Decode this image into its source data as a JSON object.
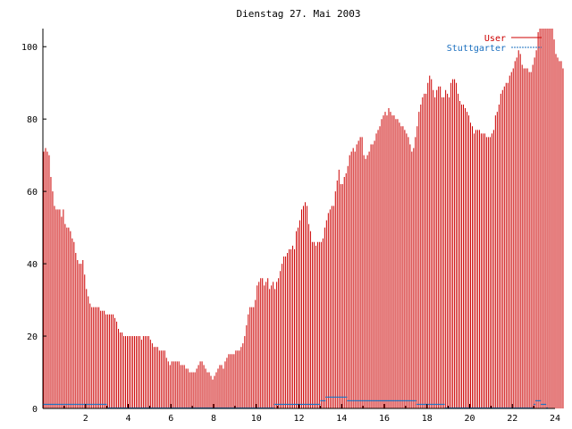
{
  "chart_data": {
    "type": "bar",
    "title": "Dienstag 27. Mai 2003",
    "xlabel": "",
    "ylabel": "",
    "xlim": [
      0,
      24
    ],
    "ylim": [
      0,
      105
    ],
    "x_ticks": [
      2,
      4,
      6,
      8,
      10,
      12,
      14,
      16,
      18,
      20,
      22,
      24
    ],
    "y_ticks": [
      0,
      20,
      40,
      60,
      80,
      100
    ],
    "grid": false,
    "legend_position": "top-right",
    "colors": {
      "User": "#cc0000",
      "Stuttgarter": "#1a6fbf"
    },
    "interval_minutes": 5,
    "series": [
      {
        "name": "User",
        "values": [
          71,
          72,
          71,
          70,
          64,
          60,
          56,
          55,
          55,
          55,
          53,
          55,
          51,
          50,
          50,
          49,
          47,
          46,
          43,
          41,
          40,
          40,
          41,
          37,
          33,
          31,
          29,
          28,
          28,
          28,
          28,
          28,
          27,
          27,
          27,
          26,
          26,
          26,
          26,
          26,
          25,
          24,
          22,
          21,
          21,
          20,
          20,
          20,
          20,
          20,
          20,
          20,
          20,
          20,
          20,
          19,
          20,
          20,
          20,
          20,
          19,
          18,
          17,
          17,
          17,
          16,
          16,
          16,
          16,
          14,
          13,
          12,
          13,
          13,
          13,
          13,
          13,
          12,
          12,
          12,
          11,
          11,
          10,
          10,
          10,
          10,
          11,
          12,
          13,
          13,
          12,
          11,
          10,
          10,
          9,
          8,
          9,
          10,
          11,
          12,
          12,
          11,
          13,
          14,
          15,
          15,
          15,
          15,
          16,
          16,
          16,
          17,
          18,
          20,
          23,
          26,
          28,
          28,
          28,
          30,
          34,
          35,
          36,
          36,
          34,
          35,
          36,
          33,
          34,
          35,
          33,
          35,
          36,
          38,
          40,
          42,
          42,
          43,
          44,
          44,
          45,
          44,
          49,
          50,
          52,
          55,
          56,
          57,
          56,
          51,
          49,
          46,
          46,
          45,
          46,
          46,
          46,
          47,
          50,
          52,
          54,
          55,
          56,
          56,
          60,
          63,
          66,
          62,
          62,
          64,
          65,
          67,
          70,
          71,
          72,
          71,
          73,
          74,
          75,
          75,
          70,
          69,
          70,
          71,
          73,
          73,
          74,
          76,
          77,
          78,
          80,
          81,
          82,
          81,
          83,
          82,
          81,
          81,
          80,
          80,
          79,
          78,
          78,
          77,
          76,
          75,
          73,
          71,
          72,
          75,
          78,
          82,
          84,
          86,
          87,
          87,
          90,
          92,
          91,
          88,
          86,
          88,
          89,
          89,
          86,
          86,
          88,
          87,
          86,
          90,
          91,
          91,
          90,
          87,
          85,
          84,
          84,
          83,
          82,
          81,
          79,
          78,
          76,
          77,
          77,
          77,
          76,
          76,
          76,
          75,
          75,
          75,
          76,
          77,
          81,
          82,
          84,
          87,
          88,
          89,
          90,
          90,
          92,
          93,
          94,
          96,
          97,
          99,
          98,
          95,
          94,
          94,
          94,
          93,
          93,
          95,
          97,
          99,
          104,
          105,
          105,
          105,
          105,
          105,
          105,
          105,
          105,
          102,
          98,
          97,
          96,
          96,
          94
        ]
      },
      {
        "name": "Stuttgarter",
        "values": [
          1,
          1,
          1,
          1,
          1,
          1,
          1,
          1,
          1,
          1,
          1,
          1,
          1,
          1,
          1,
          1,
          1,
          1,
          1,
          1,
          1,
          1,
          1,
          1,
          1,
          1,
          1,
          1,
          1,
          1,
          1,
          1,
          1,
          1,
          1,
          1,
          0,
          0,
          0,
          0,
          0,
          0,
          0,
          0,
          0,
          0,
          0,
          0,
          0,
          0,
          0,
          0,
          0,
          0,
          0,
          0,
          0,
          0,
          0,
          0,
          0,
          0,
          0,
          0,
          0,
          0,
          0,
          0,
          0,
          0,
          0,
          0,
          0,
          0,
          0,
          0,
          0,
          0,
          0,
          0,
          0,
          0,
          0,
          0,
          0,
          0,
          0,
          0,
          0,
          0,
          0,
          0,
          0,
          0,
          0,
          0,
          0,
          0,
          0,
          0,
          0,
          0,
          0,
          0,
          0,
          0,
          0,
          0,
          0,
          0,
          0,
          0,
          0,
          0,
          0,
          0,
          0,
          0,
          0,
          0,
          0,
          0,
          0,
          0,
          0,
          0,
          0,
          0,
          0,
          0,
          1,
          1,
          1,
          1,
          1,
          1,
          1,
          1,
          1,
          1,
          1,
          1,
          1,
          1,
          1,
          1,
          1,
          1,
          1,
          1,
          1,
          1,
          1,
          1,
          1,
          1,
          2,
          2,
          2,
          3,
          3,
          3,
          3,
          3,
          3,
          3,
          3,
          3,
          3,
          3,
          3,
          2,
          2,
          2,
          2,
          2,
          2,
          2,
          2,
          2,
          2,
          2,
          2,
          2,
          2,
          2,
          2,
          2,
          2,
          2,
          2,
          2,
          2,
          2,
          2,
          2,
          2,
          2,
          2,
          2,
          2,
          2,
          2,
          2,
          2,
          2,
          2,
          2,
          2,
          2,
          1,
          1,
          1,
          1,
          1,
          1,
          1,
          1,
          1,
          1,
          1,
          1,
          1,
          1,
          1,
          1,
          0,
          0,
          0,
          0,
          0,
          0,
          0,
          0,
          0,
          0,
          0,
          0,
          0,
          0,
          0,
          0,
          0,
          0,
          0,
          0,
          0,
          0,
          0,
          0,
          0,
          0,
          0,
          0,
          0,
          0,
          0,
          0,
          0,
          0,
          0,
          0,
          0,
          0,
          0,
          0,
          0,
          0,
          0,
          0,
          0,
          0,
          0,
          0,
          0,
          0,
          1,
          2,
          2,
          2,
          1,
          1,
          1,
          0
        ]
      }
    ]
  }
}
